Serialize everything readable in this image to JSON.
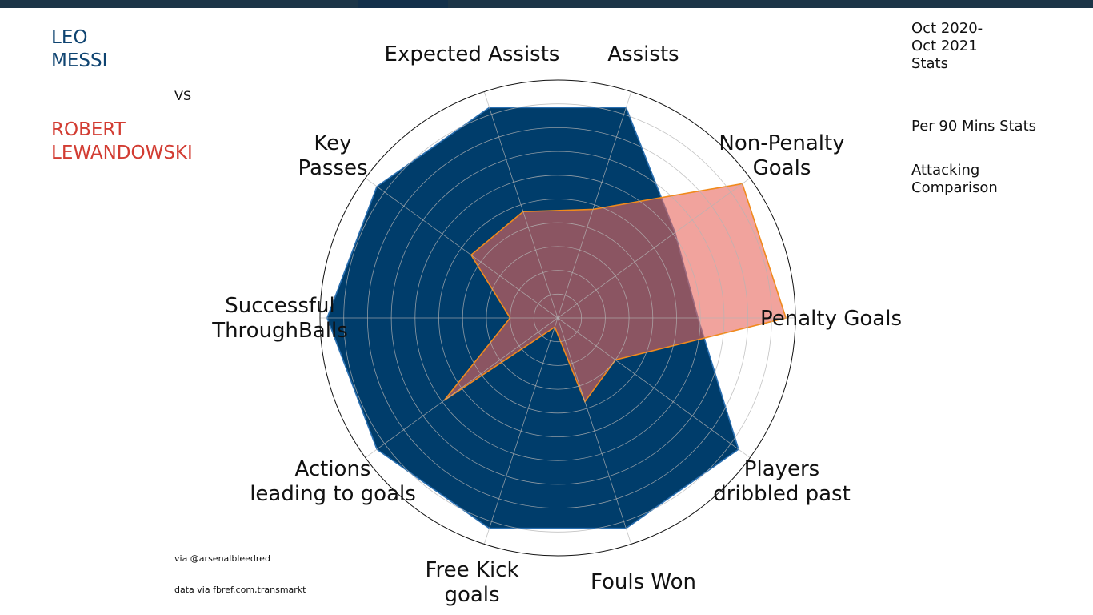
{
  "players": {
    "p1": {
      "name": "LEO\nMESSI",
      "color": "#0f4471"
    },
    "vs": "VS",
    "p2": {
      "name": "ROBERT\nLEWANDOWSKI",
      "color": "#d23c32"
    }
  },
  "side_info": {
    "period": "Oct 2020-\nOct 2021\nStats",
    "per90": "Per 90 Mins Stats",
    "comparison": "Attacking\nComparison"
  },
  "credits": {
    "line1": "via @arsenalbleedred",
    "line2": "data via fbref.com,transmarkt"
  },
  "colors": {
    "topbar": "#1c3547",
    "messi_fill": "#003d6b",
    "messi_edge": "#2a6fb0",
    "lewy_fill": "#e8655b",
    "lewy_edge": "#f08a1c",
    "grid": "#b4b4b4"
  },
  "chart_data": {
    "type": "radar",
    "categories": [
      "Penalty Goals",
      "Non-Penalty Goals",
      "Assists",
      "Expected Assists",
      "Key Passes",
      "Successful ThroughBalls",
      "Actions leading to goals",
      "Free Kick goals",
      "Fouls Won",
      "Players dribbled past"
    ],
    "series": [
      {
        "name": "LEO MESSI",
        "values": [
          0.59,
          0.61,
          0.93,
          0.93,
          0.94,
          0.97,
          0.94,
          0.93,
          0.93,
          0.94
        ]
      },
      {
        "name": "ROBERT LEWANDOWSKI",
        "values": [
          0.96,
          0.96,
          0.48,
          0.47,
          0.45,
          0.2,
          0.59,
          0.04,
          0.37,
          0.3
        ]
      }
    ],
    "ylim": [
      0,
      1
    ],
    "grid": true,
    "rings": 10
  }
}
